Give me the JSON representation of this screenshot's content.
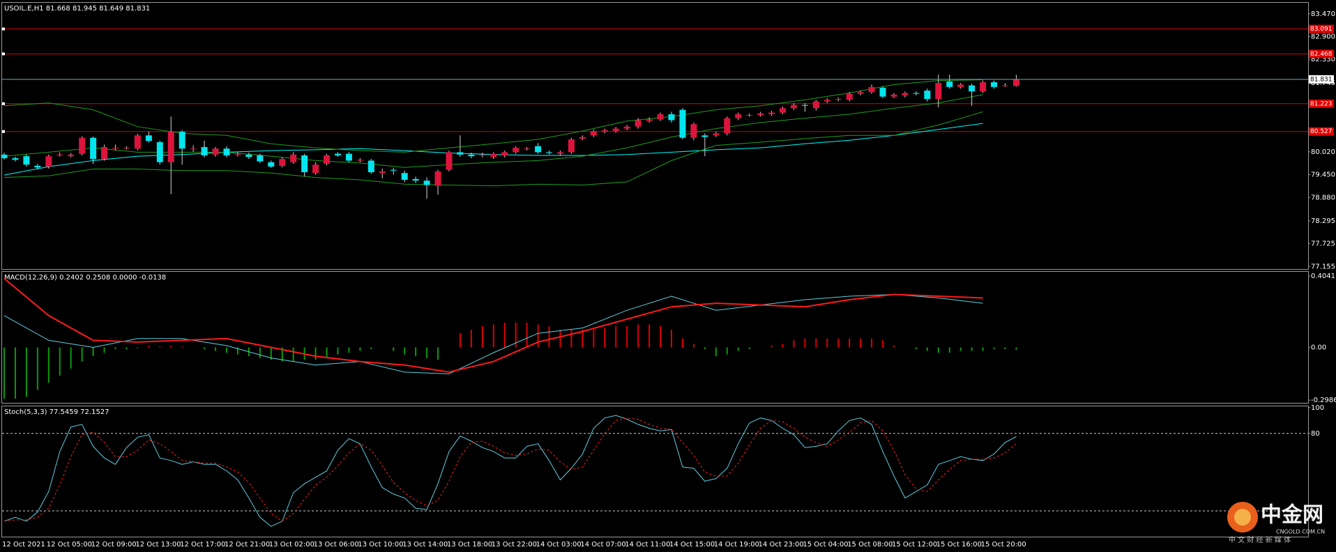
{
  "chart_data": [
    {
      "type": "candlestick",
      "title": "USOIL.E,H1  81.668 81.945 81.649 81.831",
      "categories": [
        "12 Oct 2021",
        null,
        null,
        null,
        "12 Oct 05:00",
        null,
        null,
        null,
        "12 Oct 09:00",
        null,
        null,
        null,
        "12 Oct 13:00",
        null,
        null,
        null,
        "12 Oct 17:00",
        null,
        null,
        null,
        "12 Oct 21:00",
        null,
        null,
        null,
        "13 Oct 02:00",
        null,
        null,
        null,
        "13 Oct 06:00",
        null,
        null,
        null,
        "13 Oct 10:00",
        null,
        null,
        null,
        "13 Oct 14:00",
        null,
        null,
        null,
        "13 Oct 18:00",
        null,
        null,
        null,
        "13 Oct 22:00",
        null,
        null,
        null,
        "14 Oct 03:00",
        null,
        null,
        null,
        "14 Oct 07:00",
        null,
        null,
        null,
        "14 Oct 11:00",
        null,
        null,
        null,
        "14 Oct 15:00",
        null,
        null,
        null,
        "14 Oct 19:00",
        null,
        null,
        null,
        "14 Oct 23:00",
        null,
        null,
        null,
        "15 Oct 04:00",
        null,
        null,
        null,
        "15 Oct 08:00",
        null,
        null,
        null,
        "15 Oct 12:00",
        null,
        null,
        null,
        "15 Oct 16:00",
        null,
        null,
        null,
        "15 Oct 20:00",
        null,
        null,
        null
      ],
      "open": [
        79.95,
        79.86,
        79.91,
        79.67,
        79.65,
        79.93,
        79.91,
        79.97,
        80.37,
        79.84,
        80.1,
        80.12,
        80.1,
        80.43,
        80.26,
        79.76,
        80.52,
        80.1,
        80.14,
        79.95,
        80.1,
        79.95,
        79.95,
        79.93,
        79.76,
        79.67,
        79.76,
        79.93,
        79.49,
        79.72,
        79.97,
        79.97,
        79.8,
        79.8,
        79.49,
        79.57,
        79.49,
        79.34,
        79.3,
        79.17,
        79.57,
        80.01,
        79.95,
        79.93,
        79.89,
        79.93,
        80.01,
        80.1,
        80.16,
        80.01,
        79.97,
        80.01,
        80.35,
        80.43,
        80.52,
        80.54,
        80.6,
        80.65,
        80.79,
        80.83,
        80.96,
        81.07,
        80.37,
        80.43,
        80.43,
        80.48,
        80.86,
        80.94,
        80.94,
        80.96,
        81.0,
        81.11,
        81.19,
        81.11,
        81.28,
        81.32,
        81.32,
        81.47,
        81.51,
        81.62,
        81.4,
        81.43,
        81.49,
        81.55,
        81.34,
        81.78,
        81.64,
        81.68,
        81.53,
        81.76,
        81.68,
        81.668
      ],
      "high": [
        80.0,
        79.9,
        79.95,
        79.72,
        79.95,
        80.0,
        79.99,
        80.41,
        80.4,
        80.2,
        80.2,
        80.16,
        80.47,
        80.52,
        80.3,
        80.9,
        80.56,
        80.18,
        80.3,
        80.14,
        80.16,
        80.01,
        80.0,
        79.97,
        79.8,
        79.88,
        80.01,
        79.97,
        79.76,
        79.97,
        80.01,
        80.01,
        79.86,
        79.84,
        79.6,
        79.62,
        79.55,
        79.4,
        79.38,
        79.57,
        80.05,
        80.43,
        80.0,
        80.0,
        80.01,
        80.05,
        80.16,
        80.14,
        80.24,
        80.05,
        80.05,
        80.37,
        80.43,
        80.58,
        80.6,
        80.64,
        80.69,
        80.86,
        80.88,
        81.0,
        81.02,
        81.11,
        80.75,
        80.48,
        80.52,
        80.9,
        81.0,
        80.98,
        81.02,
        81.04,
        81.15,
        81.24,
        81.24,
        81.32,
        81.36,
        81.38,
        81.51,
        81.55,
        81.7,
        81.66,
        81.49,
        81.53,
        81.53,
        81.6,
        81.95,
        81.95,
        81.74,
        81.72,
        81.8,
        81.8,
        81.74,
        81.945
      ],
      "low": [
        79.82,
        79.78,
        79.65,
        79.58,
        79.6,
        79.9,
        79.88,
        79.93,
        79.72,
        79.8,
        80.06,
        80.08,
        80.06,
        80.25,
        79.7,
        78.96,
        79.7,
        80.02,
        79.88,
        79.9,
        79.88,
        79.9,
        79.84,
        79.74,
        79.62,
        79.63,
        79.72,
        79.4,
        79.45,
        79.68,
        79.9,
        79.76,
        79.76,
        79.47,
        79.36,
        79.45,
        79.26,
        79.24,
        78.85,
        78.95,
        79.53,
        79.9,
        79.86,
        79.88,
        79.84,
        79.88,
        79.97,
        80.05,
        79.97,
        79.95,
        79.93,
        79.97,
        80.31,
        80.39,
        80.48,
        80.5,
        80.56,
        80.6,
        80.75,
        80.79,
        80.75,
        80.33,
        80.31,
        79.91,
        80.39,
        80.43,
        80.81,
        80.9,
        80.9,
        80.92,
        80.96,
        81.07,
        81.02,
        81.05,
        81.24,
        81.28,
        81.28,
        81.43,
        81.47,
        81.36,
        81.36,
        81.38,
        81.43,
        81.28,
        81.13,
        81.6,
        81.6,
        81.17,
        81.49,
        81.6,
        81.64,
        81.649
      ],
      "close": [
        79.86,
        79.82,
        79.7,
        79.63,
        79.91,
        79.95,
        79.95,
        80.37,
        79.84,
        80.14,
        80.12,
        80.12,
        80.43,
        80.29,
        79.76,
        80.52,
        80.1,
        80.1,
        79.93,
        80.1,
        79.93,
        79.97,
        79.89,
        79.78,
        79.65,
        79.84,
        79.95,
        79.51,
        79.7,
        79.93,
        79.93,
        79.8,
        79.82,
        79.51,
        79.53,
        79.55,
        79.32,
        79.3,
        79.19,
        79.53,
        80.01,
        79.95,
        79.91,
        79.95,
        79.97,
        80.01,
        80.12,
        80.1,
        80.01,
        79.99,
        80.01,
        80.33,
        80.39,
        80.54,
        80.56,
        80.6,
        80.65,
        80.81,
        80.83,
        80.96,
        80.81,
        80.37,
        80.71,
        80.39,
        80.48,
        80.86,
        80.96,
        80.94,
        80.98,
        81.0,
        81.11,
        81.19,
        81.17,
        81.28,
        81.32,
        81.34,
        81.47,
        81.51,
        81.64,
        81.4,
        81.45,
        81.49,
        81.47,
        81.34,
        81.74,
        81.64,
        81.7,
        81.53,
        81.76,
        81.64,
        81.68,
        81.831
      ],
      "up_color": "#dc143c",
      "down_color": "#00e5ee",
      "wick_color": "#d8d8d8",
      "lines": [
        {
          "color": "#00ffff",
          "values": [
            79.44,
            79.65,
            79.8,
            79.91,
            79.95,
            80.01,
            80.05,
            80.07,
            80.1,
            80.05,
            79.99,
            79.95,
            79.93,
            79.93,
            79.95,
            80.01,
            80.07,
            80.12,
            80.22,
            80.31,
            80.43,
            80.58,
            80.73
          ]
        },
        {
          "color": "#1e9e1e",
          "values": [
            81.17,
            81.24,
            81.07,
            80.65,
            80.48,
            80.43,
            80.22,
            80.12,
            80.05,
            80.01,
            80.12,
            80.22,
            80.33,
            80.54,
            80.79,
            80.9,
            81.07,
            81.17,
            81.32,
            81.49,
            81.7,
            81.8,
            81.82
          ]
        },
        {
          "color": "#1e9e1e",
          "values": [
            79.91,
            80.01,
            80.12,
            80.01,
            80.01,
            80.01,
            79.91,
            79.8,
            79.74,
            79.63,
            79.7,
            79.76,
            79.8,
            79.91,
            80.12,
            80.39,
            80.6,
            80.75,
            80.86,
            80.96,
            81.11,
            81.24,
            81.45
          ]
        },
        {
          "color": "#1e9e1e",
          "values": [
            79.38,
            79.42,
            79.59,
            79.59,
            79.55,
            79.55,
            79.49,
            79.38,
            79.32,
            79.21,
            79.19,
            79.17,
            79.21,
            79.19,
            79.27,
            79.8,
            80.18,
            80.26,
            80.35,
            80.43,
            80.43,
            80.69,
            81.02
          ]
        }
      ],
      "levels": [
        83.091,
        82.468,
        81.223,
        80.527
      ],
      "level_color": "#e00000",
      "last_price": 81.831,
      "last_color": "#6fa8b8",
      "ylim": [
        77.09,
        83.745
      ],
      "yticks": [
        {
          "value": 83.47,
          "label": "83.470"
        },
        {
          "value": 82.9,
          "label": "82.900"
        },
        {
          "value": 82.33,
          "label": "82.330"
        },
        81.745,
        {
          "value": 80.02,
          "label": "80.020"
        },
        {
          "value": 79.45,
          "label": "79.450"
        },
        {
          "value": 78.88,
          "label": "78.880"
        },
        78.295,
        77.725,
        77.155
      ]
    },
    {
      "type": "macd",
      "title": "MACD(12,26,9) 0.2402 0.2508 0.0000 -0.0138",
      "histogram": [
        -0.29,
        -0.29,
        -0.28,
        -0.24,
        -0.2,
        -0.16,
        -0.12,
        -0.08,
        -0.05,
        -0.03,
        -0.01,
        -0.01,
        -0.005,
        0.01,
        0.005,
        0.01,
        0.005,
        0,
        -0.01,
        -0.02,
        -0.03,
        -0.04,
        -0.05,
        -0.06,
        -0.07,
        -0.08,
        -0.08,
        -0.07,
        -0.07,
        -0.06,
        -0.04,
        -0.03,
        -0.02,
        -0.01,
        0,
        -0.02,
        -0.04,
        -0.05,
        -0.06,
        -0.07,
        0,
        0.08,
        0.1,
        0.12,
        0.13,
        0.14,
        0.14,
        0.14,
        0.13,
        0.12,
        0.1,
        0.1,
        0.1,
        0.1,
        0.11,
        0.12,
        0.12,
        0.13,
        0.13,
        0.12,
        0.1,
        0.05,
        0.02,
        -0.01,
        -0.05,
        -0.04,
        -0.02,
        -0.01,
        0,
        0.01,
        0.02,
        0.04,
        0.05,
        0.05,
        0.05,
        0.05,
        0.05,
        0.05,
        0.05,
        0.04,
        0.01,
        0,
        -0.01,
        -0.02,
        -0.03,
        -0.03,
        -0.02,
        -0.02,
        -0.02,
        -0.01,
        -0.01,
        -0.0138
      ],
      "up_color": "#e00000",
      "down_color": "#0a9a0a",
      "lines": [
        {
          "color": "#5fd0e0",
          "values": [
            0.18,
            0.04,
            0,
            0.05,
            0.05,
            0.01,
            -0.06,
            -0.1,
            -0.08,
            -0.14,
            -0.15,
            -0.03,
            0.08,
            0.11,
            0.21,
            0.29,
            0.21,
            0.24,
            0.27,
            0.29,
            0.3,
            0.28,
            0.25
          ]
        },
        {
          "color": "#ff1a1a",
          "width": 2,
          "values": [
            0.39,
            0.18,
            0.04,
            0.03,
            0.04,
            0.05,
            0,
            -0.05,
            -0.08,
            -0.1,
            -0.14,
            -0.08,
            0.03,
            0.09,
            0.16,
            0.23,
            0.25,
            0.24,
            0.23,
            0.27,
            0.3,
            0.29,
            0.28
          ]
        }
      ],
      "ylim": [
        -0.314,
        0.428
      ],
      "yticks": [
        0.4041,
        {
          "value": 0,
          "label": "0.00"
        },
        -0.2986
      ]
    },
    {
      "type": "stochastic",
      "title": "Stoch(5,3,3) 77.5459 72.1527",
      "lines": [
        {
          "color": "#5fd0e0",
          "values": [
            12,
            15,
            12,
            19,
            35,
            66,
            85,
            87,
            70,
            61,
            56,
            69,
            77,
            79,
            61,
            59,
            56,
            58,
            56,
            56,
            51,
            44,
            30,
            15,
            8,
            12,
            34,
            41,
            46,
            51,
            67,
            76,
            72,
            54,
            38,
            33,
            30,
            22,
            21,
            41,
            66,
            78,
            74,
            69,
            66,
            61,
            61,
            70,
            72,
            59,
            44,
            53,
            64,
            84,
            92,
            94,
            91,
            87,
            84,
            82,
            83,
            54,
            53,
            43,
            45,
            53,
            72,
            88,
            92,
            90,
            84,
            79,
            69,
            70,
            72,
            82,
            90,
            92,
            87,
            66,
            47,
            30,
            35,
            40,
            56,
            59,
            62,
            60,
            59,
            64,
            73,
            77.5459
          ]
        },
        {
          "color": "#ff2020",
          "style": "dashed",
          "values": [
            12,
            13,
            13,
            15,
            22,
            40,
            62,
            79,
            81,
            73,
            62,
            62,
            67,
            75,
            72,
            66,
            59,
            58,
            57,
            57,
            54,
            50,
            42,
            30,
            18,
            12,
            18,
            29,
            40,
            46,
            55,
            65,
            72,
            67,
            55,
            42,
            34,
            28,
            24,
            28,
            43,
            62,
            73,
            74,
            70,
            65,
            63,
            64,
            68,
            67,
            58,
            52,
            54,
            67,
            80,
            90,
            92,
            91,
            87,
            84,
            83,
            73,
            63,
            50,
            47,
            47,
            57,
            71,
            84,
            90,
            89,
            84,
            77,
            73,
            70,
            75,
            81,
            88,
            90,
            82,
            67,
            48,
            37,
            35,
            44,
            52,
            59,
            60,
            60,
            61,
            65,
            72.1527
          ]
        }
      ],
      "levels": [
        80,
        20
      ],
      "ylim": [
        0,
        101
      ],
      "yticks": [
        100,
        80
      ]
    }
  ],
  "watermark": {
    "name": "中金网",
    "site": "CNGOLD.COM.CN",
    "slogan": "中 文 财 经 新 媒 体"
  }
}
